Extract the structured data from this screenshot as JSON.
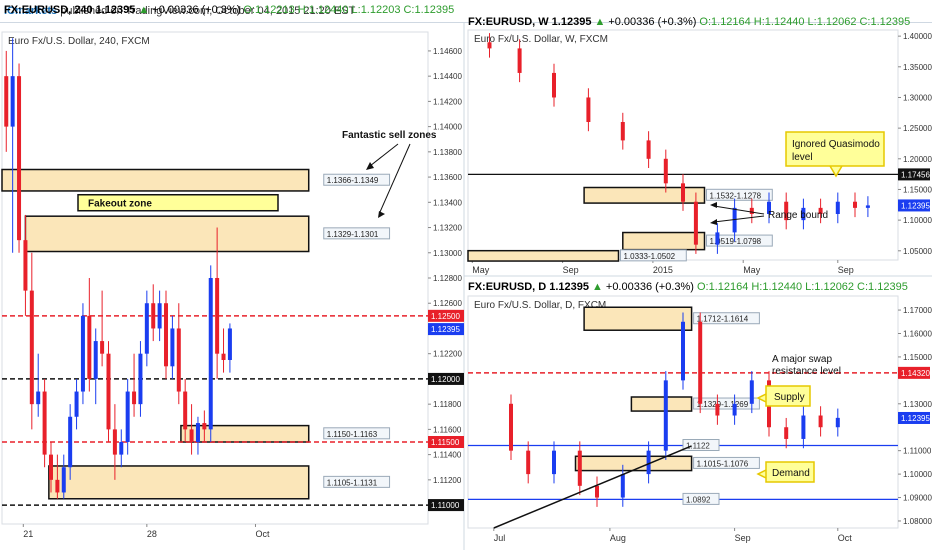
{
  "header": {
    "symbol": "FX:EURUSD, 240",
    "last": "1.12395",
    "change": "+0.00336 (+0.3%)",
    "open": "O:1.12213",
    "high": "H:1.12440",
    "low": "L:1.12203",
    "close": "C:1.12395",
    "publisher": "ICmarkets",
    "published": "published on TradingView.com, October 04, 2015 21:20 EST"
  },
  "colors": {
    "bull": "#1a3df0",
    "bear": "#e8202a",
    "zone_fill": "#fbe6b9",
    "zone_stroke": "#111111",
    "callout_fill": "#ffff99",
    "callout_stroke": "#e6c800",
    "red_level": "#e8202a",
    "blue_level": "#1a3df0",
    "price_box": "#1a3df0"
  },
  "chart_data": [
    {
      "id": "h4",
      "type": "candlestick",
      "header": {
        "symbol": "FX:EURUSD, 240",
        "last": "1.12395",
        "change": "+0.00336 (+0.3%)",
        "open": "O:1.12213",
        "high": "H:1.12440",
        "low": "L:1.12203",
        "close": "C:1.12395"
      },
      "title": "Euro Fx/U.S. Dollar, 240, FXCM",
      "ylim": [
        1.1085,
        1.1475
      ],
      "yticks": [
        "1.14600",
        "1.14400",
        "1.14200",
        "1.14000",
        "1.13800",
        "1.13600",
        "1.13400",
        "1.13200",
        "1.13000",
        "1.12800",
        "1.12600",
        "1.12200",
        "1.12000",
        "1.11800",
        "1.11600",
        "1.11400",
        "1.11200"
      ],
      "xticks": [
        {
          "label": "21",
          "x": 0.05
        },
        {
          "label": "28",
          "x": 0.34
        },
        {
          "label": "Oct",
          "x": 0.595
        }
      ],
      "x_range": [
        0,
        0.72
      ],
      "candles": [
        {
          "x": 0.01,
          "o": 1.144,
          "h": 1.146,
          "l": 1.138,
          "c": 1.14
        },
        {
          "x": 0.025,
          "o": 1.14,
          "h": 1.147,
          "l": 1.13,
          "c": 1.144
        },
        {
          "x": 0.04,
          "o": 1.144,
          "h": 1.145,
          "l": 1.13,
          "c": 1.131
        },
        {
          "x": 0.055,
          "o": 1.131,
          "h": 1.133,
          "l": 1.125,
          "c": 1.127
        },
        {
          "x": 0.07,
          "o": 1.127,
          "h": 1.13,
          "l": 1.116,
          "c": 1.118
        },
        {
          "x": 0.085,
          "o": 1.118,
          "h": 1.122,
          "l": 1.117,
          "c": 1.119
        },
        {
          "x": 0.1,
          "o": 1.119,
          "h": 1.12,
          "l": 1.113,
          "c": 1.114
        },
        {
          "x": 0.115,
          "o": 1.114,
          "h": 1.115,
          "l": 1.111,
          "c": 1.112
        },
        {
          "x": 0.13,
          "o": 1.112,
          "h": 1.114,
          "l": 1.1105,
          "c": 1.111
        },
        {
          "x": 0.145,
          "o": 1.111,
          "h": 1.114,
          "l": 1.1105,
          "c": 1.113
        },
        {
          "x": 0.16,
          "o": 1.113,
          "h": 1.118,
          "l": 1.112,
          "c": 1.117
        },
        {
          "x": 0.175,
          "o": 1.117,
          "h": 1.12,
          "l": 1.116,
          "c": 1.119
        },
        {
          "x": 0.19,
          "o": 1.119,
          "h": 1.126,
          "l": 1.118,
          "c": 1.125
        },
        {
          "x": 0.205,
          "o": 1.125,
          "h": 1.128,
          "l": 1.119,
          "c": 1.12
        },
        {
          "x": 0.22,
          "o": 1.12,
          "h": 1.124,
          "l": 1.118,
          "c": 1.123
        },
        {
          "x": 0.235,
          "o": 1.123,
          "h": 1.127,
          "l": 1.121,
          "c": 1.122
        },
        {
          "x": 0.25,
          "o": 1.122,
          "h": 1.123,
          "l": 1.115,
          "c": 1.116
        },
        {
          "x": 0.265,
          "o": 1.116,
          "h": 1.118,
          "l": 1.112,
          "c": 1.114
        },
        {
          "x": 0.28,
          "o": 1.114,
          "h": 1.116,
          "l": 1.113,
          "c": 1.115
        },
        {
          "x": 0.295,
          "o": 1.115,
          "h": 1.12,
          "l": 1.114,
          "c": 1.119
        },
        {
          "x": 0.31,
          "o": 1.119,
          "h": 1.122,
          "l": 1.117,
          "c": 1.118
        },
        {
          "x": 0.325,
          "o": 1.118,
          "h": 1.123,
          "l": 1.117,
          "c": 1.122
        },
        {
          "x": 0.34,
          "o": 1.122,
          "h": 1.127,
          "l": 1.121,
          "c": 1.126
        },
        {
          "x": 0.355,
          "o": 1.126,
          "h": 1.1275,
          "l": 1.123,
          "c": 1.124
        },
        {
          "x": 0.37,
          "o": 1.124,
          "h": 1.127,
          "l": 1.123,
          "c": 1.126
        },
        {
          "x": 0.385,
          "o": 1.126,
          "h": 1.127,
          "l": 1.12,
          "c": 1.121
        },
        {
          "x": 0.4,
          "o": 1.121,
          "h": 1.125,
          "l": 1.12,
          "c": 1.124
        },
        {
          "x": 0.415,
          "o": 1.124,
          "h": 1.126,
          "l": 1.118,
          "c": 1.119
        },
        {
          "x": 0.43,
          "o": 1.119,
          "h": 1.12,
          "l": 1.115,
          "c": 1.116
        },
        {
          "x": 0.445,
          "o": 1.116,
          "h": 1.118,
          "l": 1.114,
          "c": 1.115
        },
        {
          "x": 0.46,
          "o": 1.115,
          "h": 1.117,
          "l": 1.114,
          "c": 1.1165
        },
        {
          "x": 0.475,
          "o": 1.1165,
          "h": 1.1175,
          "l": 1.115,
          "c": 1.116
        },
        {
          "x": 0.49,
          "o": 1.116,
          "h": 1.129,
          "l": 1.115,
          "c": 1.128
        },
        {
          "x": 0.505,
          "o": 1.128,
          "h": 1.132,
          "l": 1.12,
          "c": 1.122
        },
        {
          "x": 0.52,
          "o": 1.122,
          "h": 1.124,
          "l": 1.1205,
          "c": 1.1215
        },
        {
          "x": 0.535,
          "o": 1.1215,
          "h": 1.1244,
          "l": 1.1205,
          "c": 1.124
        }
      ],
      "zones": [
        {
          "label": "1.1366-1.1349",
          "from": 1.1366,
          "to": 1.1349,
          "x0": 0.0,
          "x1": 0.72
        },
        {
          "label": "1.1329-1.1301",
          "from": 1.1329,
          "to": 1.1301,
          "x0": 0.055,
          "x1": 0.72
        },
        {
          "label": "1.1150-1.1163",
          "from": 1.1163,
          "to": 1.115,
          "x0": 0.42,
          "x1": 0.72
        },
        {
          "label": "1.1105-1.1131",
          "from": 1.1131,
          "to": 1.1105,
          "x0": 0.11,
          "x1": 0.72
        }
      ],
      "levels": [
        {
          "label": "1.12500",
          "value": 1.125,
          "color": "red",
          "style": "dashed"
        },
        {
          "label": "1.12000",
          "value": 1.12,
          "color": "black",
          "style": "dashed"
        },
        {
          "label": "1.11500",
          "value": 1.115,
          "color": "red",
          "style": "dashed"
        },
        {
          "label": "1.11000",
          "value": 1.11,
          "color": "black",
          "style": "dashed"
        }
      ],
      "last_price": "1.12395",
      "annotations": [
        {
          "text": "Fakeout zone",
          "type": "yellow-box"
        },
        {
          "text": "Fantastic sell zones",
          "type": "text-arrows"
        }
      ]
    },
    {
      "id": "weekly",
      "type": "candlestick",
      "header": {
        "symbol": "FX:EURUSD, W",
        "last": "1.12395",
        "change": "+0.00336 (+0.3%)",
        "open": "O:1.12164",
        "high": "H:1.12440",
        "low": "L:1.12062",
        "close": "C:1.12395"
      },
      "title": "Euro Fx/U.S. Dollar, W, FXCM",
      "ylim": [
        1.035,
        1.41
      ],
      "yticks": [
        "1.40000",
        "1.35000",
        "1.30000",
        "1.25000",
        "1.20000",
        "1.15000",
        "1.10000",
        "1.05000"
      ],
      "xticks": [
        {
          "label": "May",
          "x": 0.01
        },
        {
          "label": "Sep",
          "x": 0.22
        },
        {
          "label": "2015",
          "x": 0.43
        },
        {
          "label": "May",
          "x": 0.64
        },
        {
          "label": "Sep",
          "x": 0.86
        }
      ],
      "x_range": [
        0,
        1
      ],
      "zones": [
        {
          "label": "1.1532-1.1278",
          "from": 1.1532,
          "to": 1.1278
        },
        {
          "label": "1.0519-1.0798",
          "from": 1.0798,
          "to": 1.0519
        },
        {
          "label": "1.0333-1.0502",
          "from": 1.0502,
          "to": 1.0333
        }
      ],
      "levels": [
        {
          "label": "1.17456",
          "value": 1.17456,
          "color": "black",
          "style": "solid"
        }
      ],
      "last_price": "1.12395",
      "annotations": [
        {
          "text": "Ignored Quasimodo level",
          "type": "yellow-callout"
        },
        {
          "text": "Range bound",
          "type": "text-arrows"
        }
      ]
    },
    {
      "id": "daily",
      "type": "candlestick",
      "header": {
        "symbol": "FX:EURUSD, D",
        "last": "1.12395",
        "change": "+0.00336 (+0.3%)",
        "open": "O:1.12164",
        "high": "H:1.12440",
        "low": "L:1.12062",
        "close": "C:1.12395"
      },
      "title": "Euro Fx/U.S. Dollar, D, FXCM",
      "ylim": [
        1.077,
        1.176
      ],
      "yticks": [
        "1.17000",
        "1.16000",
        "1.15000",
        "1.13000",
        "1.11000",
        "1.10000",
        "1.09000",
        "1.08000"
      ],
      "xticks": [
        {
          "label": "Jul",
          "x": 0.06
        },
        {
          "label": "Aug",
          "x": 0.33
        },
        {
          "label": "Sep",
          "x": 0.62
        },
        {
          "label": "Oct",
          "x": 0.86
        }
      ],
      "x_range": [
        0,
        1
      ],
      "zones": [
        {
          "label": "1.1712-1.1614",
          "from": 1.1712,
          "to": 1.1614
        },
        {
          "label": "1.1329-1.1269",
          "from": 1.1329,
          "to": 1.1269
        },
        {
          "label": "1.1015-1.1076",
          "from": 1.1076,
          "to": 1.1015
        }
      ],
      "levels": [
        {
          "label": "1.14320",
          "value": 1.1432,
          "color": "red",
          "style": "dashed"
        },
        {
          "label": "1.1122",
          "value": 1.1122,
          "color": "blue",
          "style": "solid"
        },
        {
          "label": "1.0892",
          "value": 1.0892,
          "color": "blue",
          "style": "solid"
        }
      ],
      "last_price": "1.12395",
      "annotations": [
        {
          "text": "A major swap resistance level",
          "type": "text"
        },
        {
          "text": "Supply",
          "type": "yellow-callout"
        },
        {
          "text": "Demand",
          "type": "yellow-callout"
        }
      ]
    }
  ]
}
